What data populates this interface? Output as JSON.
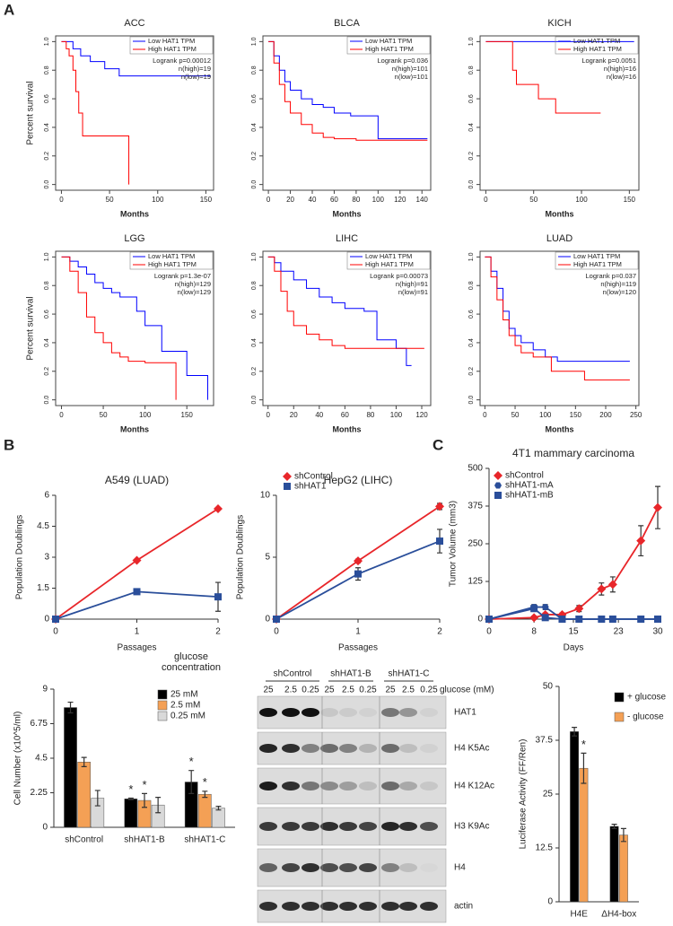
{
  "panel_labels": [
    "A",
    "B",
    "C"
  ],
  "chart_data": [
    {
      "type": "survival",
      "title": "ACC",
      "xlabel": "Months",
      "ylabel": "Percent survival",
      "xlim": [
        -6,
        158
      ],
      "ylim": [
        -0.04,
        1.04
      ],
      "xticks": [
        0,
        50,
        100,
        150
      ],
      "yticks": [
        {
          "value": 0,
          "label": "0.0"
        },
        0.2,
        0.4,
        0.6,
        0.8,
        {
          "value": 1,
          "label": "1.0"
        }
      ],
      "series": [
        {
          "name": "Low HAT1 TPM",
          "color": "#0000ff",
          "x": [
            0,
            12,
            20,
            30,
            45,
            60,
            155
          ],
          "values": [
            1,
            0.95,
            0.9,
            0.86,
            0.81,
            0.76,
            0.76
          ]
        },
        {
          "name": "High HAT1 TPM",
          "color": "#ff0000",
          "x": [
            0,
            5,
            8,
            12,
            15,
            18,
            22,
            70
          ],
          "values": [
            1,
            0.95,
            0.9,
            0.8,
            0.65,
            0.5,
            0.34,
            0
          ]
        }
      ],
      "annotations": [
        "Logrank p=0.00012",
        "n(high)=19",
        "n(low)=19"
      ]
    },
    {
      "type": "survival",
      "title": "BLCA",
      "xlabel": "Months",
      "xlim": [
        -5,
        148
      ],
      "ylim": [
        -0.04,
        1.04
      ],
      "xticks": [
        0,
        20,
        40,
        60,
        80,
        100,
        120,
        140
      ],
      "yticks": [
        {
          "value": 0,
          "label": "0.0"
        },
        0.2,
        0.4,
        0.6,
        0.8,
        {
          "value": 1,
          "label": "1.0"
        }
      ],
      "series": [
        {
          "name": "Low HAT1 TPM",
          "color": "#0000ff",
          "x": [
            0,
            5,
            10,
            15,
            20,
            30,
            40,
            50,
            60,
            75,
            100,
            145
          ],
          "values": [
            1,
            0.9,
            0.8,
            0.72,
            0.66,
            0.6,
            0.56,
            0.54,
            0.5,
            0.48,
            0.32,
            0.32
          ]
        },
        {
          "name": "High HAT1 TPM",
          "color": "#ff0000",
          "x": [
            0,
            5,
            10,
            15,
            20,
            30,
            40,
            50,
            60,
            80,
            145
          ],
          "values": [
            1,
            0.85,
            0.7,
            0.58,
            0.5,
            0.42,
            0.36,
            0.33,
            0.32,
            0.31,
            0.31
          ]
        }
      ],
      "annotations": [
        "Logrank p=0.036",
        "n(high)=101",
        "n(low)=101"
      ]
    },
    {
      "type": "survival",
      "title": "KICH",
      "xlabel": "Months",
      "xlim": [
        -6,
        160
      ],
      "ylim": [
        -0.04,
        1.04
      ],
      "xticks": [
        0,
        50,
        100,
        150
      ],
      "yticks": [
        {
          "value": 0,
          "label": "0.0"
        },
        0.2,
        0.4,
        0.6,
        0.8,
        {
          "value": 1,
          "label": "1.0"
        }
      ],
      "series": [
        {
          "name": "Low HAT1 TPM",
          "color": "#0000ff",
          "x": [
            0,
            155
          ],
          "values": [
            1,
            1
          ]
        },
        {
          "name": "High HAT1 TPM",
          "color": "#ff0000",
          "x": [
            0,
            28,
            32,
            55,
            73,
            120
          ],
          "values": [
            1,
            0.8,
            0.7,
            0.6,
            0.5,
            0.5
          ]
        }
      ],
      "annotations": [
        "Logrank p=0.0051",
        "n(high)=16",
        "n(low)=16"
      ]
    },
    {
      "type": "survival",
      "title": "LGG",
      "xlabel": "Months",
      "ylabel": "Percent survival",
      "xlim": [
        -7,
        182
      ],
      "ylim": [
        -0.04,
        1.04
      ],
      "xticks": [
        0,
        50,
        100,
        150
      ],
      "yticks": [
        {
          "value": 0,
          "label": "0.0"
        },
        0.2,
        0.4,
        0.6,
        0.8,
        {
          "value": 1,
          "label": "1.0"
        }
      ],
      "series": [
        {
          "name": "Low HAT1 TPM",
          "color": "#0000ff",
          "x": [
            0,
            10,
            20,
            30,
            40,
            50,
            60,
            70,
            90,
            100,
            120,
            150,
            175
          ],
          "values": [
            1,
            0.97,
            0.93,
            0.88,
            0.82,
            0.78,
            0.75,
            0.72,
            0.62,
            0.52,
            0.34,
            0.17,
            0
          ]
        },
        {
          "name": "High HAT1 TPM",
          "color": "#ff0000",
          "x": [
            0,
            10,
            20,
            30,
            40,
            50,
            60,
            70,
            80,
            100,
            135,
            137
          ],
          "values": [
            1,
            0.9,
            0.75,
            0.58,
            0.47,
            0.4,
            0.33,
            0.3,
            0.27,
            0.26,
            0.26,
            0
          ]
        }
      ],
      "annotations": [
        "Logrank p=1.3e-07",
        "n(high)=129",
        "n(low)=129"
      ]
    },
    {
      "type": "survival",
      "title": "LIHC",
      "xlabel": "Months",
      "xlim": [
        -4,
        127
      ],
      "ylim": [
        -0.04,
        1.04
      ],
      "xticks": [
        0,
        20,
        40,
        60,
        80,
        100,
        120
      ],
      "yticks": [
        {
          "value": 0,
          "label": "0.0"
        },
        0.2,
        0.4,
        0.6,
        0.8,
        {
          "value": 1,
          "label": "1.0"
        }
      ],
      "series": [
        {
          "name": "Low HAT1 TPM",
          "color": "#0000ff",
          "x": [
            0,
            5,
            10,
            20,
            30,
            40,
            50,
            60,
            75,
            85,
            100,
            108,
            112
          ],
          "values": [
            1,
            0.96,
            0.9,
            0.84,
            0.78,
            0.72,
            0.68,
            0.64,
            0.62,
            0.42,
            0.36,
            0.24,
            0.24
          ]
        },
        {
          "name": "High HAT1 TPM",
          "color": "#ff0000",
          "x": [
            0,
            5,
            10,
            15,
            20,
            30,
            40,
            50,
            60,
            85,
            122
          ],
          "values": [
            1,
            0.9,
            0.76,
            0.62,
            0.52,
            0.46,
            0.42,
            0.38,
            0.36,
            0.36,
            0.36
          ]
        }
      ],
      "annotations": [
        "Logrank p=0.00073",
        "n(high)=91",
        "n(low)=91"
      ]
    },
    {
      "type": "survival",
      "title": "LUAD",
      "xlabel": "Months",
      "xlim": [
        -8,
        255
      ],
      "ylim": [
        -0.04,
        1.04
      ],
      "xticks": [
        0,
        50,
        100,
        150,
        200,
        250
      ],
      "yticks": [
        {
          "value": 0,
          "label": "0.0"
        },
        0.2,
        0.4,
        0.6,
        0.8,
        {
          "value": 1,
          "label": "1.0"
        }
      ],
      "series": [
        {
          "name": "Low HAT1 TPM",
          "color": "#0000ff",
          "x": [
            0,
            10,
            20,
            30,
            40,
            50,
            60,
            80,
            100,
            120,
            240
          ],
          "values": [
            1,
            0.9,
            0.78,
            0.62,
            0.5,
            0.45,
            0.4,
            0.35,
            0.3,
            0.27,
            0.27
          ]
        },
        {
          "name": "High HAT1 TPM",
          "color": "#ff0000",
          "x": [
            0,
            10,
            20,
            30,
            40,
            50,
            60,
            80,
            110,
            165,
            240
          ],
          "values": [
            1,
            0.86,
            0.7,
            0.56,
            0.45,
            0.38,
            0.33,
            0.3,
            0.2,
            0.14,
            0.14
          ]
        }
      ],
      "annotations": [
        "Logrank p=0.037",
        "n(high)=119",
        "n(low)=120"
      ]
    },
    {
      "type": "line",
      "title": "A549 (LUAD)",
      "xlabel": "Passages",
      "ylabel": "Population Doublings",
      "x": [
        0,
        1,
        2
      ],
      "xlim": [
        0,
        2
      ],
      "ylim": [
        0,
        6
      ],
      "xticks": [
        0,
        1,
        2
      ],
      "yticks": [
        0,
        1.5,
        3,
        4.5,
        6
      ],
      "legend": false,
      "series": [
        {
          "name": "shControl",
          "color": "#e8262a",
          "marker": "diamond",
          "values": [
            0,
            2.85,
            5.35
          ],
          "errors": [
            0,
            0.05,
            0.05
          ]
        },
        {
          "name": "shHAT1",
          "color": "#2a4e9a",
          "marker": "square",
          "values": [
            0,
            1.33,
            1.08
          ],
          "errors": [
            0,
            0.07,
            0.7
          ]
        }
      ]
    },
    {
      "type": "line",
      "title": "HepG2 (LIHC)",
      "xlabel": "Passages",
      "ylabel": "Population Doublings",
      "x": [
        0,
        1,
        2
      ],
      "xlim": [
        0,
        2
      ],
      "ylim": [
        0,
        10
      ],
      "xticks": [
        0,
        1,
        2
      ],
      "yticks": [
        0,
        5,
        10
      ],
      "legend": true,
      "series": [
        {
          "name": "shControl",
          "color": "#e8262a",
          "marker": "diamond",
          "values": [
            0,
            4.7,
            9.1
          ],
          "errors": [
            0,
            0.15,
            0.25
          ]
        },
        {
          "name": "shHAT1",
          "color": "#2a4e9a",
          "marker": "square",
          "values": [
            0,
            3.65,
            6.3
          ],
          "errors": [
            0,
            0.5,
            0.95
          ]
        }
      ]
    },
    {
      "type": "line",
      "title": "4T1 mammary carcinoma",
      "xlabel": "Days",
      "ylabel": "Tumor Volume (mm3)",
      "x": [
        0,
        8,
        10,
        13,
        16,
        20,
        22,
        27,
        30
      ],
      "xlim": [
        0,
        30
      ],
      "ylim": [
        0,
        500
      ],
      "xticks": [
        0,
        8,
        15,
        23,
        30
      ],
      "yticks": [
        0,
        125,
        250,
        375,
        500
      ],
      "legend": true,
      "series": [
        {
          "name": "shControl",
          "color": "#e8262a",
          "marker": "diamond",
          "values": [
            0,
            5,
            15,
            15,
            35,
            100,
            115,
            260,
            370
          ],
          "errors": [
            0,
            5,
            5,
            5,
            10,
            20,
            25,
            50,
            70
          ]
        },
        {
          "name": "shHAT1-mA",
          "color": "#2a4e9a",
          "marker": "hexagon",
          "values": [
            0,
            40,
            40,
            0,
            0,
            0,
            0,
            0,
            0
          ],
          "errors": [
            0,
            8,
            8,
            0,
            0,
            0,
            0,
            0,
            0
          ]
        },
        {
          "name": "shHAT1-mB",
          "color": "#2a4e9a",
          "marker": "square",
          "values": [
            0,
            35,
            5,
            0,
            0,
            0,
            0,
            0,
            0
          ],
          "errors": [
            0,
            8,
            3,
            0,
            0,
            0,
            0,
            0,
            0
          ]
        }
      ]
    },
    {
      "type": "bar",
      "ylabel": "Cell Number (x10^5/ml)",
      "categories": [
        "shControl",
        "shHAT1-B",
        "shHAT1-C"
      ],
      "ylim": [
        0,
        9
      ],
      "yticks": [
        0,
        2.25,
        4.5,
        6.75,
        9
      ],
      "legend_title": "glucose concentration",
      "series": [
        {
          "name": "25 mM",
          "color": "#000000",
          "values": [
            7.8,
            1.85,
            2.95
          ],
          "errors": [
            0.35,
            0.05,
            0.75
          ]
        },
        {
          "name": "2.5 mM",
          "color": "#f4a055",
          "values": [
            4.25,
            1.75,
            2.15
          ],
          "errors": [
            0.3,
            0.45,
            0.2
          ]
        },
        {
          "name": "0.25 mM",
          "color": "#d9d9d9",
          "values": [
            1.9,
            1.45,
            1.25
          ],
          "errors": [
            0.5,
            0.5,
            0.12
          ]
        }
      ],
      "annotations": [
        {
          "text": "*",
          "category": 1,
          "series": 0
        },
        {
          "text": "*",
          "category": 1,
          "series": 1
        },
        {
          "text": "*",
          "category": 2,
          "series": 0
        },
        {
          "text": "*",
          "category": 2,
          "series": 1
        }
      ]
    },
    {
      "type": "bar",
      "ylabel": "Luciferase Activity (FF/Ren)",
      "categories": [
        "H4E",
        "ΔH4-box"
      ],
      "ylim": [
        0,
        50
      ],
      "yticks": [
        0,
        12.5,
        25,
        37.5,
        50
      ],
      "series": [
        {
          "name": "+ glucose",
          "color": "#000000",
          "values": [
            39.5,
            17.5
          ],
          "errors": [
            1,
            0.5
          ]
        },
        {
          "name": "- glucose",
          "color": "#f4a055",
          "values": [
            31,
            15.5
          ],
          "errors": [
            3.5,
            1.5
          ]
        }
      ],
      "annotations": [
        {
          "text": "*",
          "category": 0,
          "series": 1
        }
      ]
    }
  ],
  "blot": {
    "groups": [
      "shControl",
      "shHAT1-B",
      "shHAT1-C"
    ],
    "lanes": [
      "25",
      "2.5",
      "0.25",
      "25",
      "2.5",
      "0.25",
      "25",
      "2.5",
      "0.25"
    ],
    "lane_title": "glucose (mM)",
    "rows": [
      "HAT1",
      "H4 K5Ac",
      "H4 K12Ac",
      "H3 K9Ac",
      "H4",
      "actin"
    ]
  }
}
